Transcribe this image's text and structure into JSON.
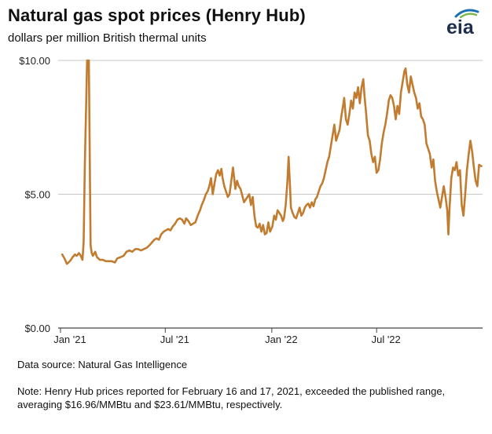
{
  "header": {
    "title": "Natural gas spot prices (Henry Hub)",
    "subtitle": "dollars per million British thermal units",
    "logo_text": "eia"
  },
  "footer": {
    "source": "Data source: Natural Gas Intelligence",
    "note": "Note: Henry Hub prices reported for February 16 and 17, 2021, exceeded the published range, averaging $16.96/MMBtu and $23.61/MMBtu, respectively."
  },
  "colors": {
    "line": "#c27c2f",
    "grid": "#c8c8c8",
    "axis": "#444444",
    "logo_blue": "#1a6fb5",
    "logo_green": "#7ab648"
  },
  "chart_data": {
    "type": "line",
    "title": "Natural gas spot prices (Henry Hub)",
    "ylabel": "dollars per million British thermal units",
    "xlim": [
      "2020-12-28",
      "2022-12-31"
    ],
    "ylim": [
      0,
      10
    ],
    "x_ticks": [
      {
        "date": "2021-01-01",
        "label": "Jan '21"
      },
      {
        "date": "2021-07-01",
        "label": "Jul '21"
      },
      {
        "date": "2022-01-01",
        "label": "Jan '22"
      },
      {
        "date": "2022-07-01",
        "label": "Jul '22"
      }
    ],
    "y_ticks": [
      {
        "value": 0,
        "label": "$0.00"
      },
      {
        "value": 5,
        "label": "$5.00"
      },
      {
        "value": 10,
        "label": "$10.00"
      }
    ],
    "grid": "horizontal",
    "series": [
      {
        "name": "",
        "points": [
          [
            "2021-01-04",
            2.75
          ],
          [
            "2021-01-08",
            2.6
          ],
          [
            "2021-01-12",
            2.4
          ],
          [
            "2021-01-15",
            2.45
          ],
          [
            "2021-01-19",
            2.55
          ],
          [
            "2021-01-22",
            2.65
          ],
          [
            "2021-01-26",
            2.75
          ],
          [
            "2021-01-29",
            2.7
          ],
          [
            "2021-02-02",
            2.8
          ],
          [
            "2021-02-05",
            2.7
          ],
          [
            "2021-02-08",
            2.55
          ],
          [
            "2021-02-10",
            3.2
          ],
          [
            "2021-02-12",
            6.0
          ],
          [
            "2021-02-16",
            10.0
          ],
          [
            "2021-02-17",
            10.0
          ],
          [
            "2021-02-19",
            10.0
          ],
          [
            "2021-02-22",
            3.1
          ],
          [
            "2021-02-24",
            2.8
          ],
          [
            "2021-02-26",
            2.7
          ],
          [
            "2021-03-02",
            2.85
          ],
          [
            "2021-03-05",
            2.65
          ],
          [
            "2021-03-10",
            2.55
          ],
          [
            "2021-03-15",
            2.55
          ],
          [
            "2021-03-20",
            2.5
          ],
          [
            "2021-03-25",
            2.5
          ],
          [
            "2021-03-30",
            2.5
          ],
          [
            "2021-04-05",
            2.45
          ],
          [
            "2021-04-09",
            2.6
          ],
          [
            "2021-04-15",
            2.65
          ],
          [
            "2021-04-20",
            2.7
          ],
          [
            "2021-04-25",
            2.85
          ],
          [
            "2021-04-30",
            2.9
          ],
          [
            "2021-05-05",
            2.85
          ],
          [
            "2021-05-10",
            2.95
          ],
          [
            "2021-05-15",
            2.95
          ],
          [
            "2021-05-20",
            2.9
          ],
          [
            "2021-05-25",
            2.95
          ],
          [
            "2021-05-30",
            3.0
          ],
          [
            "2021-06-04",
            3.1
          ],
          [
            "2021-06-08",
            3.2
          ],
          [
            "2021-06-12",
            3.3
          ],
          [
            "2021-06-16",
            3.35
          ],
          [
            "2021-06-20",
            3.3
          ],
          [
            "2021-06-24",
            3.5
          ],
          [
            "2021-06-28",
            3.6
          ],
          [
            "2021-07-02",
            3.65
          ],
          [
            "2021-07-06",
            3.7
          ],
          [
            "2021-07-10",
            3.65
          ],
          [
            "2021-07-14",
            3.8
          ],
          [
            "2021-07-18",
            3.9
          ],
          [
            "2021-07-22",
            4.05
          ],
          [
            "2021-07-26",
            4.1
          ],
          [
            "2021-07-30",
            4.05
          ],
          [
            "2021-08-03",
            3.9
          ],
          [
            "2021-08-06",
            4.1
          ],
          [
            "2021-08-10",
            4.0
          ],
          [
            "2021-08-14",
            3.85
          ],
          [
            "2021-08-18",
            3.9
          ],
          [
            "2021-08-22",
            3.95
          ],
          [
            "2021-08-26",
            4.2
          ],
          [
            "2021-08-30",
            4.4
          ],
          [
            "2021-09-02",
            4.6
          ],
          [
            "2021-09-06",
            4.8
          ],
          [
            "2021-09-09",
            5.0
          ],
          [
            "2021-09-12",
            5.1
          ],
          [
            "2021-09-15",
            5.3
          ],
          [
            "2021-09-18",
            5.6
          ],
          [
            "2021-09-21",
            5.0
          ],
          [
            "2021-09-24",
            5.4
          ],
          [
            "2021-09-27",
            5.75
          ],
          [
            "2021-09-30",
            5.9
          ],
          [
            "2021-10-03",
            5.7
          ],
          [
            "2021-10-06",
            5.95
          ],
          [
            "2021-10-08",
            5.6
          ],
          [
            "2021-10-11",
            5.3
          ],
          [
            "2021-10-14",
            5.1
          ],
          [
            "2021-10-17",
            4.9
          ],
          [
            "2021-10-20",
            5.0
          ],
          [
            "2021-10-23",
            5.5
          ],
          [
            "2021-10-26",
            6.0
          ],
          [
            "2021-10-28",
            5.6
          ],
          [
            "2021-10-30",
            5.2
          ],
          [
            "2021-11-02",
            5.5
          ],
          [
            "2021-11-05",
            5.3
          ],
          [
            "2021-11-08",
            5.2
          ],
          [
            "2021-11-11",
            4.95
          ],
          [
            "2021-11-14",
            4.7
          ],
          [
            "2021-11-17",
            4.8
          ],
          [
            "2021-11-20",
            4.9
          ],
          [
            "2021-11-23",
            5.0
          ],
          [
            "2021-11-26",
            4.6
          ],
          [
            "2021-11-29",
            4.9
          ],
          [
            "2021-12-02",
            4.2
          ],
          [
            "2021-12-05",
            3.8
          ],
          [
            "2021-12-08",
            3.75
          ],
          [
            "2021-12-11",
            3.9
          ],
          [
            "2021-12-14",
            3.6
          ],
          [
            "2021-12-17",
            3.85
          ],
          [
            "2021-12-20",
            3.5
          ],
          [
            "2021-12-23",
            3.55
          ],
          [
            "2021-12-26",
            3.95
          ],
          [
            "2021-12-29",
            3.6
          ],
          [
            "2022-01-02",
            3.8
          ],
          [
            "2022-01-05",
            4.2
          ],
          [
            "2022-01-08",
            4.05
          ],
          [
            "2022-01-11",
            4.4
          ],
          [
            "2022-01-14",
            4.3
          ],
          [
            "2022-01-17",
            4.2
          ],
          [
            "2022-01-20",
            4.0
          ],
          [
            "2022-01-22",
            4.1
          ],
          [
            "2022-01-25",
            4.6
          ],
          [
            "2022-01-28",
            5.5
          ],
          [
            "2022-01-30",
            6.4
          ],
          [
            "2022-02-01",
            5.5
          ],
          [
            "2022-02-03",
            4.5
          ],
          [
            "2022-02-06",
            4.3
          ],
          [
            "2022-02-09",
            4.15
          ],
          [
            "2022-02-12",
            4.1
          ],
          [
            "2022-02-15",
            4.3
          ],
          [
            "2022-02-18",
            4.5
          ],
          [
            "2022-02-21",
            4.2
          ],
          [
            "2022-02-24",
            4.3
          ],
          [
            "2022-02-27",
            4.5
          ],
          [
            "2022-03-02",
            4.6
          ],
          [
            "2022-03-05",
            4.65
          ],
          [
            "2022-03-08",
            4.5
          ],
          [
            "2022-03-11",
            4.7
          ],
          [
            "2022-03-14",
            4.55
          ],
          [
            "2022-03-17",
            4.8
          ],
          [
            "2022-03-20",
            4.9
          ],
          [
            "2022-03-23",
            5.1
          ],
          [
            "2022-03-26",
            5.3
          ],
          [
            "2022-03-29",
            5.4
          ],
          [
            "2022-04-01",
            5.6
          ],
          [
            "2022-04-04",
            5.9
          ],
          [
            "2022-04-07",
            6.2
          ],
          [
            "2022-04-10",
            6.4
          ],
          [
            "2022-04-13",
            6.8
          ],
          [
            "2022-04-16",
            7.2
          ],
          [
            "2022-04-19",
            7.6
          ],
          [
            "2022-04-22",
            7.0
          ],
          [
            "2022-04-25",
            7.2
          ],
          [
            "2022-04-28",
            7.4
          ],
          [
            "2022-05-01",
            7.9
          ],
          [
            "2022-05-04",
            8.3
          ],
          [
            "2022-05-06",
            8.6
          ],
          [
            "2022-05-09",
            7.8
          ],
          [
            "2022-05-12",
            7.6
          ],
          [
            "2022-05-15",
            8.0
          ],
          [
            "2022-05-18",
            8.5
          ],
          [
            "2022-05-21",
            8.2
          ],
          [
            "2022-05-24",
            8.8
          ],
          [
            "2022-05-27",
            8.6
          ],
          [
            "2022-05-30",
            9.0
          ],
          [
            "2022-06-02",
            8.4
          ],
          [
            "2022-06-05",
            9.0
          ],
          [
            "2022-06-08",
            9.3
          ],
          [
            "2022-06-10",
            8.7
          ],
          [
            "2022-06-13",
            8.0
          ],
          [
            "2022-06-16",
            7.2
          ],
          [
            "2022-06-19",
            7.0
          ],
          [
            "2022-06-22",
            6.5
          ],
          [
            "2022-06-25",
            6.2
          ],
          [
            "2022-06-28",
            6.4
          ],
          [
            "2022-07-01",
            5.8
          ],
          [
            "2022-07-04",
            5.9
          ],
          [
            "2022-07-07",
            6.3
          ],
          [
            "2022-07-10",
            6.9
          ],
          [
            "2022-07-13",
            7.3
          ],
          [
            "2022-07-16",
            7.6
          ],
          [
            "2022-07-19",
            8.0
          ],
          [
            "2022-07-22",
            8.5
          ],
          [
            "2022-07-25",
            8.7
          ],
          [
            "2022-07-28",
            8.6
          ],
          [
            "2022-07-31",
            8.3
          ],
          [
            "2022-08-03",
            7.8
          ],
          [
            "2022-08-06",
            8.3
          ],
          [
            "2022-08-09",
            8.0
          ],
          [
            "2022-08-12",
            8.8
          ],
          [
            "2022-08-15",
            9.2
          ],
          [
            "2022-08-18",
            9.6
          ],
          [
            "2022-08-20",
            9.7
          ],
          [
            "2022-08-23",
            9.1
          ],
          [
            "2022-08-26",
            8.8
          ],
          [
            "2022-08-29",
            9.4
          ],
          [
            "2022-09-01",
            9.1
          ],
          [
            "2022-09-04",
            8.8
          ],
          [
            "2022-09-07",
            8.6
          ],
          [
            "2022-09-10",
            8.2
          ],
          [
            "2022-09-13",
            8.4
          ],
          [
            "2022-09-16",
            7.9
          ],
          [
            "2022-09-19",
            7.8
          ],
          [
            "2022-09-22",
            7.6
          ],
          [
            "2022-09-25",
            6.9
          ],
          [
            "2022-09-28",
            6.7
          ],
          [
            "2022-10-01",
            6.5
          ],
          [
            "2022-10-04",
            6.0
          ],
          [
            "2022-10-07",
            6.3
          ],
          [
            "2022-10-10",
            5.5
          ],
          [
            "2022-10-13",
            5.1
          ],
          [
            "2022-10-16",
            4.8
          ],
          [
            "2022-10-19",
            4.5
          ],
          [
            "2022-10-22",
            4.9
          ],
          [
            "2022-10-25",
            5.3
          ],
          [
            "2022-10-28",
            4.9
          ],
          [
            "2022-10-31",
            4.4
          ],
          [
            "2022-11-02",
            3.5
          ],
          [
            "2022-11-04",
            4.5
          ],
          [
            "2022-11-07",
            5.6
          ],
          [
            "2022-11-10",
            6.0
          ],
          [
            "2022-11-13",
            5.9
          ],
          [
            "2022-11-16",
            6.2
          ],
          [
            "2022-11-19",
            5.7
          ],
          [
            "2022-11-22",
            5.9
          ],
          [
            "2022-11-25",
            4.6
          ],
          [
            "2022-11-28",
            4.2
          ],
          [
            "2022-12-01",
            5.0
          ],
          [
            "2022-12-04",
            5.9
          ],
          [
            "2022-12-07",
            6.5
          ],
          [
            "2022-12-10",
            7.0
          ],
          [
            "2022-12-13",
            6.6
          ],
          [
            "2022-12-16",
            6.0
          ],
          [
            "2022-12-19",
            5.5
          ],
          [
            "2022-12-22",
            5.3
          ],
          [
            "2022-12-25",
            6.1
          ],
          [
            "2022-12-29",
            6.05
          ]
        ]
      }
    ]
  }
}
